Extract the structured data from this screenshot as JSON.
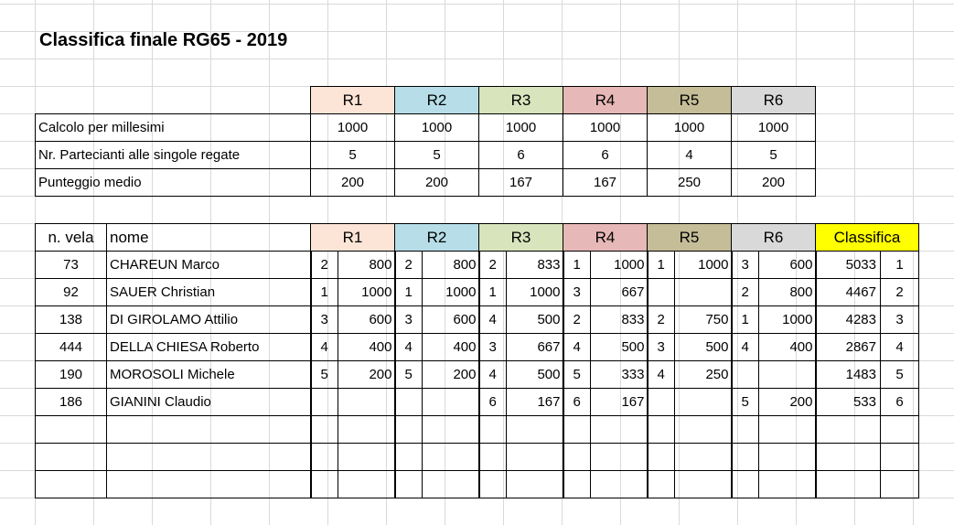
{
  "title": "Classifica finale RG65 - 2019",
  "colors": {
    "R1": "#fce4d6",
    "R2": "#b7dee8",
    "R3": "#d8e4bc",
    "R4": "#e6b8b7",
    "R5": "#c4bd97",
    "R6": "#d9d9d9",
    "Classifica": "#ffff00"
  },
  "stats": {
    "headers": [
      "R1",
      "R2",
      "R3",
      "R4",
      "R5",
      "R6"
    ],
    "rows": [
      {
        "label": "Calcolo per millesimi",
        "values": [
          "1000",
          "1000",
          "1000",
          "1000",
          "1000",
          "1000"
        ]
      },
      {
        "label": "Nr. Partecianti alle singole regate",
        "values": [
          "5",
          "5",
          "6",
          "6",
          "4",
          "5"
        ]
      },
      {
        "label": "Punteggio medio",
        "values": [
          "200",
          "200",
          "167",
          "167",
          "250",
          "200"
        ]
      }
    ]
  },
  "results": {
    "headers": {
      "vela": "n. vela",
      "nome": "nome",
      "races": [
        "R1",
        "R2",
        "R3",
        "R4",
        "R5",
        "R6"
      ],
      "classifica": "Classifica"
    },
    "rows": [
      {
        "vela": "73",
        "nome": "CHAREUN Marco",
        "races": [
          [
            "2",
            "800"
          ],
          [
            "2",
            "800"
          ],
          [
            "2",
            "833"
          ],
          [
            "1",
            "1000"
          ],
          [
            "1",
            "1000"
          ],
          [
            "3",
            "600"
          ]
        ],
        "total": "5033",
        "rank": "1"
      },
      {
        "vela": "92",
        "nome": "SAUER Christian",
        "races": [
          [
            "1",
            "1000"
          ],
          [
            "1",
            "1000"
          ],
          [
            "1",
            "1000"
          ],
          [
            "3",
            "667"
          ],
          [
            "",
            ""
          ],
          [
            "2",
            "800"
          ]
        ],
        "total": "4467",
        "rank": "2"
      },
      {
        "vela": "138",
        "nome": "DI GIROLAMO Attilio",
        "races": [
          [
            "3",
            "600"
          ],
          [
            "3",
            "600"
          ],
          [
            "4",
            "500"
          ],
          [
            "2",
            "833"
          ],
          [
            "2",
            "750"
          ],
          [
            "1",
            "1000"
          ]
        ],
        "total": "4283",
        "rank": "3"
      },
      {
        "vela": "444",
        "nome": "DELLA CHIESA Roberto",
        "races": [
          [
            "4",
            "400"
          ],
          [
            "4",
            "400"
          ],
          [
            "3",
            "667"
          ],
          [
            "4",
            "500"
          ],
          [
            "3",
            "500"
          ],
          [
            "4",
            "400"
          ]
        ],
        "total": "2867",
        "rank": "4"
      },
      {
        "vela": "190",
        "nome": "MOROSOLI Michele",
        "races": [
          [
            "5",
            "200"
          ],
          [
            "5",
            "200"
          ],
          [
            "4",
            "500"
          ],
          [
            "5",
            "333"
          ],
          [
            "4",
            "250"
          ],
          [
            "",
            ""
          ]
        ],
        "total": "1483",
        "rank": "5"
      },
      {
        "vela": "186",
        "nome": "GIANINI Claudio",
        "races": [
          [
            "",
            ""
          ],
          [
            "",
            ""
          ],
          [
            "6",
            "167"
          ],
          [
            "6",
            "167"
          ],
          [
            "",
            ""
          ],
          [
            "5",
            "200"
          ]
        ],
        "total": "533",
        "rank": "6"
      }
    ],
    "empty_rows": 3
  }
}
